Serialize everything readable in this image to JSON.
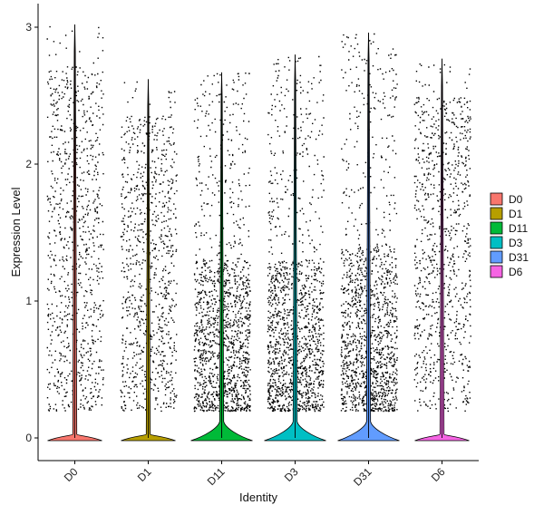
{
  "chart_data": {
    "type": "violin",
    "title": "",
    "xlabel": "Identity",
    "ylabel": "Expression Level",
    "ylim": [
      -0.2,
      3.05
    ],
    "yticks": [
      0,
      1,
      2,
      3
    ],
    "grid": false,
    "legend_position": "right",
    "categories": [
      "D0",
      "D1",
      "D11",
      "D3",
      "D31",
      "D6"
    ],
    "series": [
      {
        "name": "D0",
        "color": "#F8766D",
        "max": 3.02,
        "dense_max": 1.0,
        "pct_zero": 0.55,
        "density": "uniform"
      },
      {
        "name": "D1",
        "color": "#B79F00",
        "max": 2.62,
        "dense_max": 1.5,
        "pct_zero": 0.58,
        "density": "uniform"
      },
      {
        "name": "D11",
        "color": "#00BA38",
        "max": 2.67,
        "dense_max": 1.3,
        "pct_zero": 0.25,
        "density": "low"
      },
      {
        "name": "D3",
        "color": "#00BFC4",
        "max": 2.8,
        "dense_max": 1.3,
        "pct_zero": 0.3,
        "density": "low"
      },
      {
        "name": "D31",
        "color": "#619CFF",
        "max": 2.96,
        "dense_max": 1.4,
        "pct_zero": 0.3,
        "density": "low"
      },
      {
        "name": "D6",
        "color": "#F564E3",
        "max": 2.77,
        "dense_max": 1.0,
        "pct_zero": 0.55,
        "density": "uniform"
      }
    ]
  }
}
